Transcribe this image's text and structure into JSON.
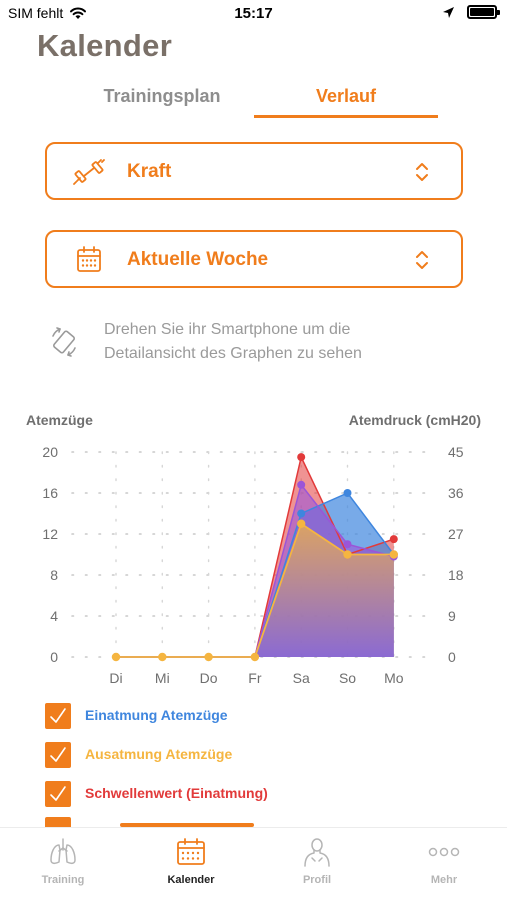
{
  "status_bar": {
    "carrier": "SIM fehlt",
    "time": "15:17"
  },
  "header": {
    "title": "Kalender"
  },
  "tabs": [
    {
      "label": "Trainingsplan",
      "active": false
    },
    {
      "label": "Verlauf",
      "active": true
    }
  ],
  "selectors": {
    "category": {
      "label": "Kraft",
      "icon": "dumbbell-icon"
    },
    "period": {
      "label": "Aktuelle Woche",
      "icon": "calendar-icon"
    }
  },
  "hint": {
    "text": "Drehen Sie ihr Smartphone um die Detailansicht des Graphen zu sehen",
    "icon": "rotate-phone-icon"
  },
  "colors": {
    "accent": "#f07d1c",
    "blue": "#3f86de",
    "yellow": "#f5b540",
    "red": "#e23a3a",
    "purple": "#9b55d8"
  },
  "chart_data": {
    "type": "area",
    "ylabel": "Atemzüge",
    "y2label": "Atemdruck (cmH20)",
    "categories": [
      "Di",
      "Mi",
      "Do",
      "Fr",
      "Sa",
      "So",
      "Mo"
    ],
    "ylim": [
      0,
      20
    ],
    "yticks": [
      0,
      4,
      8,
      12,
      16,
      20
    ],
    "y2lim": [
      0,
      45
    ],
    "y2ticks": [
      0,
      9,
      18,
      27,
      36,
      45
    ],
    "grid": true,
    "series": [
      {
        "name": "Einatmung Atemzüge",
        "color": "#3f86de",
        "values": [
          0,
          0,
          0,
          0,
          14,
          16,
          10
        ]
      },
      {
        "name": "Ausatmung Atemzüge",
        "color": "#f5b540",
        "values": [
          0,
          0,
          0,
          0,
          13,
          10,
          10
        ]
      },
      {
        "name": "Schwellenwert (Einatmung)",
        "color": "#e23a3a",
        "values": [
          0,
          0,
          0,
          0,
          19.5,
          10,
          11.5
        ]
      },
      {
        "name": "",
        "color": "#9b55d8",
        "values": [
          0,
          0,
          0,
          0,
          16.8,
          11,
          9.8
        ]
      }
    ]
  },
  "tab_bar": [
    {
      "label": "Training",
      "icon": "lungs-icon",
      "active": false
    },
    {
      "label": "Kalender",
      "icon": "calendar-icon",
      "active": true
    },
    {
      "label": "Profil",
      "icon": "profile-icon",
      "active": false
    },
    {
      "label": "Mehr",
      "icon": "more-icon",
      "active": false
    }
  ]
}
